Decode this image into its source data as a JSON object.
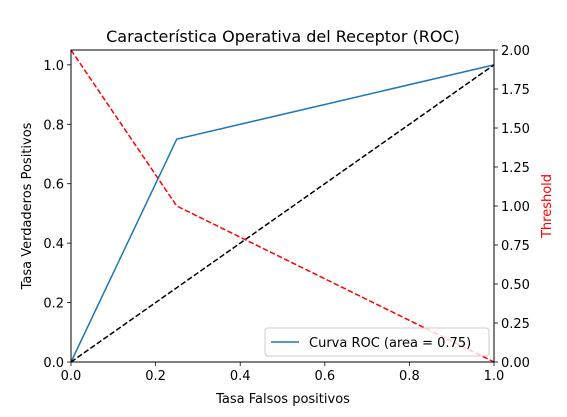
{
  "chart_data": {
    "type": "line",
    "title": "Característica Operativa del Receptor (ROC)",
    "xlabel": "Tasa Falsos positivos",
    "ylabel": "Tasa Verdaderos Positivos",
    "y2label": "Threshold",
    "xlim": [
      0,
      1
    ],
    "ylim": [
      0,
      1.05
    ],
    "y2lim": [
      0,
      2
    ],
    "xticks": [
      "0.0",
      "0.2",
      "0.4",
      "0.6",
      "0.8",
      "1.0"
    ],
    "yticks": [
      "0.0",
      "0.2",
      "0.4",
      "0.6",
      "0.8",
      "1.0"
    ],
    "y2ticks": [
      "0.00",
      "0.25",
      "0.50",
      "0.75",
      "1.00",
      "1.25",
      "1.50",
      "1.75",
      "2.00"
    ],
    "series": [
      {
        "name": "Curva ROC (area = 0.75)",
        "axis": "left",
        "color": "#1f77b4",
        "style": "solid",
        "x": [
          0.0,
          0.25,
          1.0
        ],
        "y": [
          0.0,
          0.75,
          1.0
        ]
      },
      {
        "axis": "left",
        "color": "#000000",
        "style": "dashed",
        "x": [
          0.0,
          1.0
        ],
        "y": [
          0.0,
          1.0
        ]
      },
      {
        "axis": "right",
        "color": "#ff0000",
        "style": "dashed",
        "x": [
          0.0,
          0.25,
          1.0
        ],
        "y": [
          2.0,
          1.0,
          0.0
        ]
      }
    ],
    "legend": {
      "position": "lower-right",
      "entries": [
        "Curva ROC (area = 0.75)"
      ]
    },
    "grid": false
  }
}
